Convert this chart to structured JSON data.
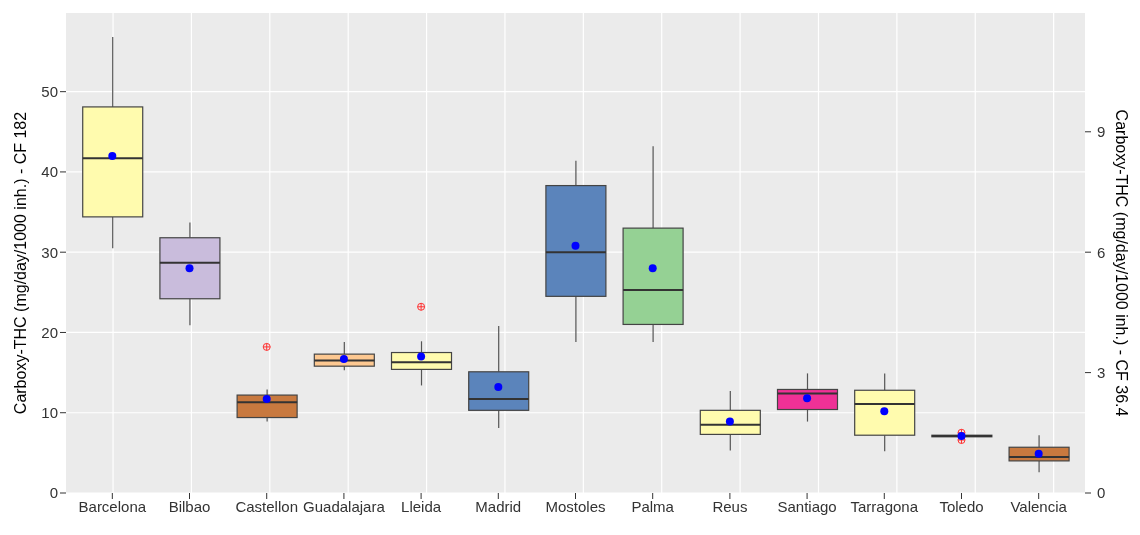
{
  "chart_data": {
    "type": "box",
    "categories": [
      "Barcelona",
      "Bilbao",
      "Castellon",
      "Guadalajara",
      "Lleida",
      "Madrid",
      "Mostoles",
      "Palma",
      "Reus",
      "Santiago",
      "Tarragona",
      "Toledo",
      "Valencia"
    ],
    "colors": [
      "#fffbae",
      "#c9bcdc",
      "#c8793f",
      "#fdc891",
      "#fffbae",
      "#5b84bb",
      "#5b84bb",
      "#95d194",
      "#fffbae",
      "#ef3196",
      "#fffbae",
      "#333333",
      "#c8793f"
    ],
    "boxes": [
      {
        "low": 30.5,
        "q1": 34.4,
        "median": 41.7,
        "q3": 48.1,
        "high": 56.8,
        "mean": 42.0
      },
      {
        "low": 20.9,
        "q1": 24.2,
        "median": 28.7,
        "q3": 31.8,
        "high": 33.7,
        "mean": 28.0
      },
      {
        "low": 8.9,
        "q1": 9.4,
        "median": 11.3,
        "q3": 12.2,
        "high": 12.9,
        "mean": 11.7,
        "outliers": [
          18.2
        ]
      },
      {
        "low": 15.3,
        "q1": 15.8,
        "median": 16.5,
        "q3": 17.3,
        "high": 18.8,
        "mean": 16.7
      },
      {
        "low": 13.4,
        "q1": 15.4,
        "median": 16.3,
        "q3": 17.5,
        "high": 18.9,
        "mean": 17.0,
        "outliers": [
          23.2
        ]
      },
      {
        "low": 8.1,
        "q1": 10.3,
        "median": 11.7,
        "q3": 15.1,
        "high": 20.8,
        "mean": 13.2
      },
      {
        "low": 18.8,
        "q1": 24.5,
        "median": 30.0,
        "q3": 38.3,
        "high": 41.4,
        "mean": 30.8
      },
      {
        "low": 18.8,
        "q1": 21.0,
        "median": 25.3,
        "q3": 33.0,
        "high": 43.2,
        "mean": 28.0
      },
      {
        "low": 5.3,
        "q1": 7.3,
        "median": 8.5,
        "q3": 10.3,
        "high": 12.7,
        "mean": 8.9
      },
      {
        "low": 8.9,
        "q1": 10.4,
        "median": 12.4,
        "q3": 12.9,
        "high": 14.9,
        "mean": 11.8
      },
      {
        "low": 5.2,
        "q1": 7.2,
        "median": 11.1,
        "q3": 12.8,
        "high": 14.9,
        "mean": 10.2
      },
      {
        "low": 7.0,
        "q1": 7.0,
        "median": 7.1,
        "q3": 7.2,
        "high": 7.2,
        "mean": 7.1,
        "outliers": [
          7.5,
          6.6
        ]
      },
      {
        "low": 2.6,
        "q1": 4.0,
        "median": 4.5,
        "q3": 5.7,
        "high": 7.2,
        "mean": 4.9
      }
    ],
    "ylabel": "Carboxy-THC (mg/day/1000 inh.) - CF 182",
    "y2label": "Carboxy-THC (mg/day/1000 inh.) - CF 36.4",
    "ylim": [
      0,
      59.8
    ],
    "yticks": [
      0,
      10,
      20,
      30,
      40,
      50
    ],
    "y2lim": [
      0,
      11.96
    ],
    "y2ticks": [
      0,
      3,
      6,
      9
    ],
    "grid": true
  }
}
